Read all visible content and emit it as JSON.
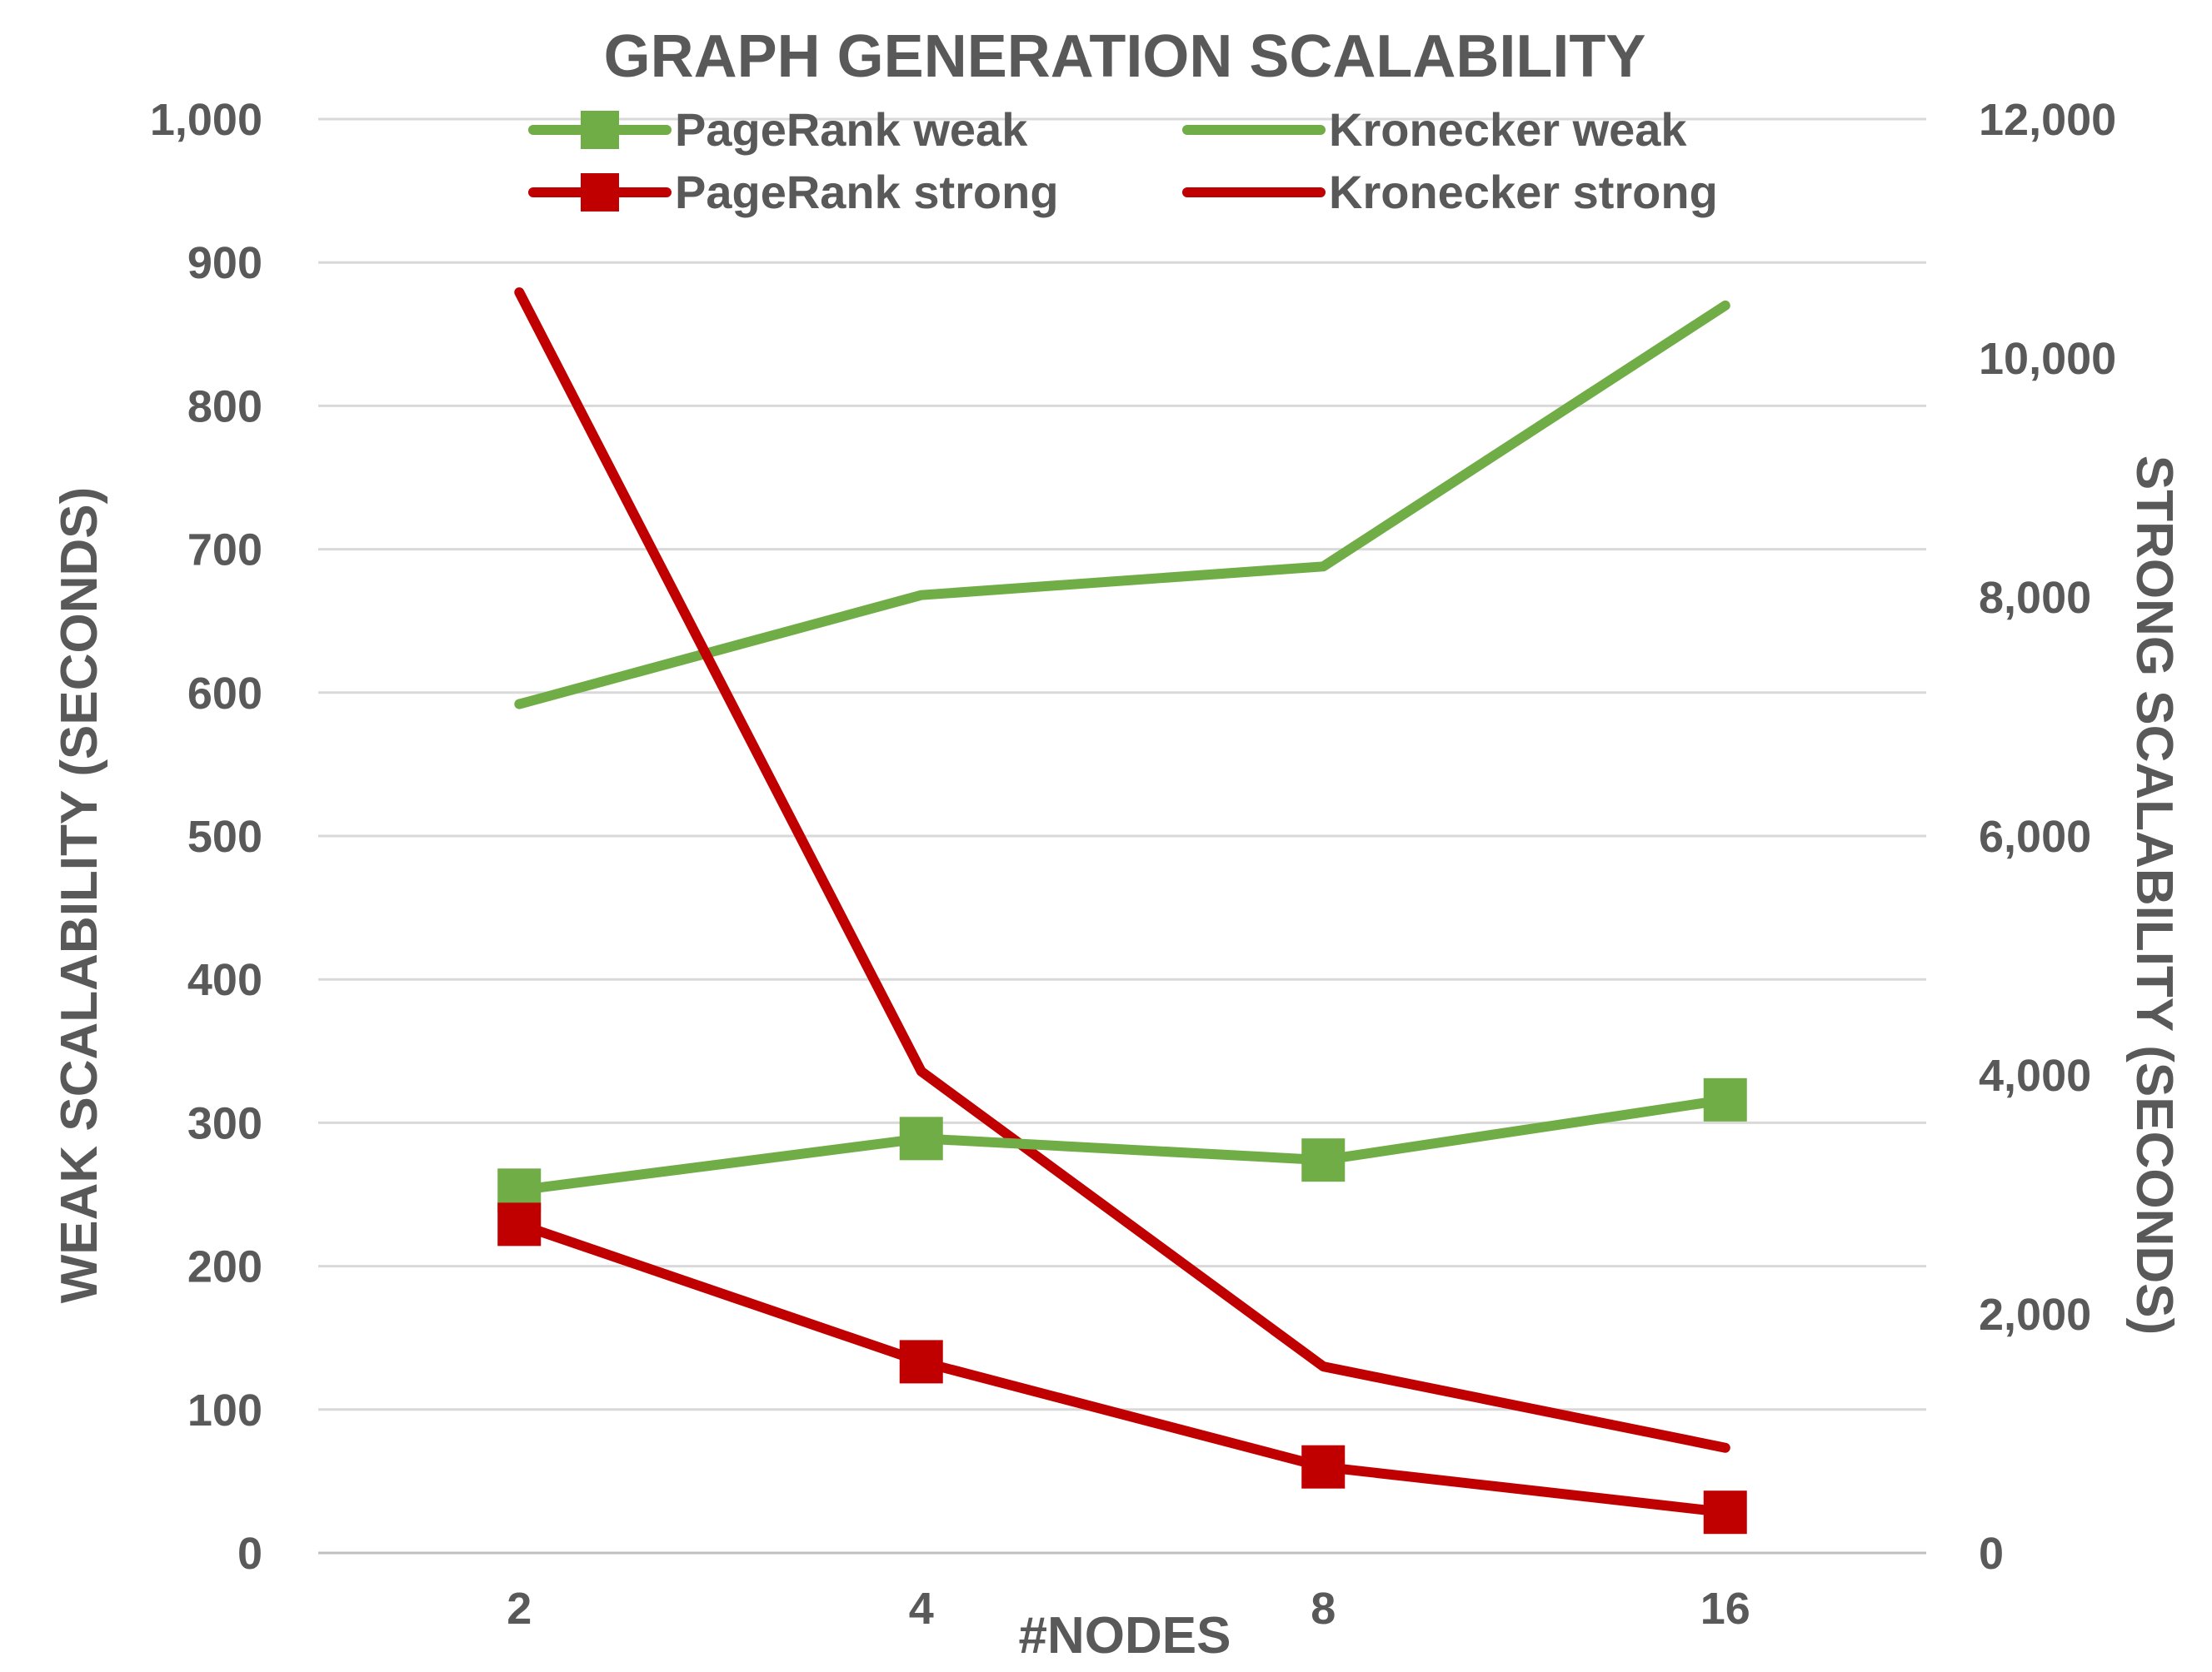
{
  "chart_data": {
    "type": "line",
    "title": "GRAPH GENERATION SCALABILITY",
    "xlabel": "#NODES",
    "ylabel_left": "WEAK SCALABILITY (SECONDS)",
    "ylabel_right": "STRONG SCALABILITY (SECONDS)",
    "categories": [
      "2",
      "4",
      "8",
      "16"
    ],
    "y_left": {
      "min": 0,
      "max": 1000,
      "step": 100,
      "ticks": [
        "0",
        "100",
        "200",
        "300",
        "400",
        "500",
        "600",
        "700",
        "800",
        "900",
        "1,000"
      ]
    },
    "y_right": {
      "min": 0,
      "max": 12000,
      "step": 2000,
      "ticks": [
        "0",
        "2,000",
        "4,000",
        "6,000",
        "8,000",
        "10,000",
        "12,000"
      ]
    },
    "grid": true,
    "legend_position": "top",
    "series": [
      {
        "name": "PageRank weak",
        "axis": "left",
        "color": "#70ad47",
        "marker": "square",
        "values": [
          253,
          289,
          274,
          316
        ]
      },
      {
        "name": "Kronecker weak",
        "axis": "left",
        "color": "#70ad47",
        "marker": "none",
        "values": [
          592,
          668,
          688,
          870
        ]
      },
      {
        "name": "PageRank strong",
        "axis": "right",
        "color": "#c00000",
        "marker": "square",
        "values": [
          2750,
          1600,
          720,
          340
        ]
      },
      {
        "name": "Kronecker strong",
        "axis": "right",
        "color": "#c00000",
        "marker": "none",
        "values": [
          10550,
          4030,
          1560,
          880
        ]
      }
    ]
  }
}
